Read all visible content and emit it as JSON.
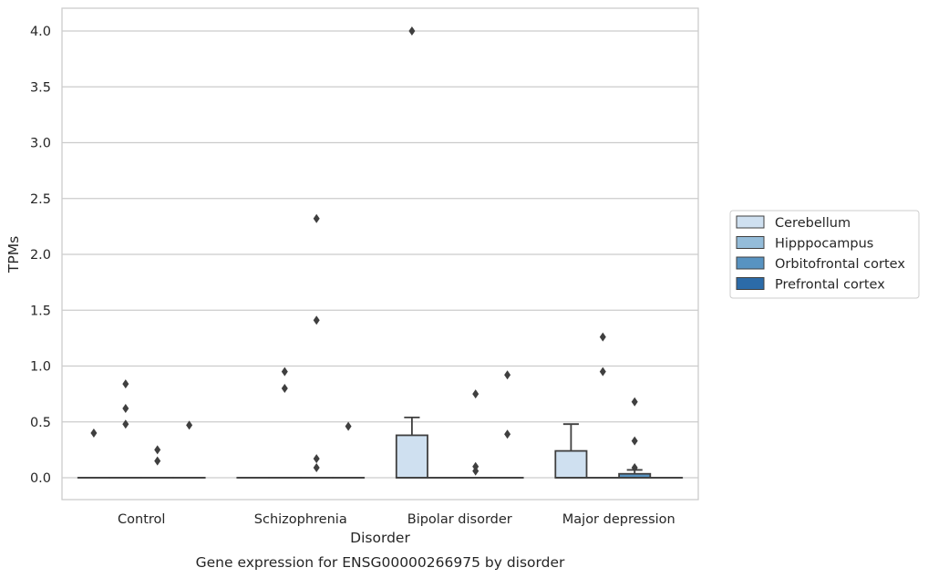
{
  "chart_data": {
    "type": "box",
    "title": "",
    "caption": "Gene expression for ENSG00000266975 by disorder",
    "xlabel": "Disorder",
    "ylabel": "TPMs",
    "ylim": [
      -0.2,
      4.2
    ],
    "yticks": [
      0.0,
      0.5,
      1.0,
      1.5,
      2.0,
      2.5,
      3.0,
      3.5,
      4.0
    ],
    "ytick_labels": [
      "0.0",
      "0.5",
      "1.0",
      "1.5",
      "2.0",
      "2.5",
      "3.0",
      "3.5",
      "4.0"
    ],
    "grid": "horizontal",
    "legend_position": "right",
    "categories": [
      "Control",
      "Schizophrenia",
      "Bipolar disorder",
      "Major depression"
    ],
    "series": [
      {
        "name": "Cerebellum",
        "color": "#cfe0f0",
        "boxes": [
          {
            "q1": 0,
            "median": 0,
            "q3": 0,
            "whisker_low": 0,
            "whisker_high": 0,
            "outliers": [
              0.4
            ]
          },
          {
            "q1": 0,
            "median": 0,
            "q3": 0,
            "whisker_low": 0,
            "whisker_high": 0,
            "outliers": []
          },
          {
            "q1": 0,
            "median": 0,
            "q3": 0.38,
            "whisker_low": 0,
            "whisker_high": 0.54,
            "outliers": [
              4.0
            ]
          },
          {
            "q1": 0,
            "median": 0,
            "q3": 0.24,
            "whisker_low": 0,
            "whisker_high": 0.48,
            "outliers": []
          }
        ]
      },
      {
        "name": "Hipppocampus",
        "color": "#94bcd9",
        "boxes": [
          {
            "q1": 0,
            "median": 0,
            "q3": 0,
            "whisker_low": 0,
            "whisker_high": 0,
            "outliers": [
              0.84,
              0.62,
              0.48
            ]
          },
          {
            "q1": 0,
            "median": 0,
            "q3": 0,
            "whisker_low": 0,
            "whisker_high": 0,
            "outliers": [
              0.95,
              0.8
            ]
          },
          {
            "q1": 0,
            "median": 0,
            "q3": 0,
            "whisker_low": 0,
            "whisker_high": 0,
            "outliers": []
          },
          {
            "q1": 0,
            "median": 0,
            "q3": 0,
            "whisker_low": 0,
            "whisker_high": 0,
            "outliers": [
              1.26,
              0.95
            ]
          }
        ]
      },
      {
        "name": "Orbitofrontal cortex",
        "color": "#5893c1",
        "boxes": [
          {
            "q1": 0,
            "median": 0,
            "q3": 0,
            "whisker_low": 0,
            "whisker_high": 0,
            "outliers": [
              0.25,
              0.15
            ]
          },
          {
            "q1": 0,
            "median": 0,
            "q3": 0,
            "whisker_low": 0,
            "whisker_high": 0,
            "outliers": [
              2.32,
              1.41,
              0.17,
              0.09
            ]
          },
          {
            "q1": 0,
            "median": 0,
            "q3": 0,
            "whisker_low": 0,
            "whisker_high": 0,
            "outliers": [
              0.75,
              0.1,
              0.06
            ]
          },
          {
            "q1": 0,
            "median": 0,
            "q3": 0.035,
            "whisker_low": 0,
            "whisker_high": 0.07,
            "outliers": [
              0.68,
              0.33,
              0.09
            ]
          }
        ]
      },
      {
        "name": "Prefrontal cortex",
        "color": "#2c6ba8",
        "boxes": [
          {
            "q1": 0,
            "median": 0,
            "q3": 0,
            "whisker_low": 0,
            "whisker_high": 0,
            "outliers": [
              0.47
            ]
          },
          {
            "q1": 0,
            "median": 0,
            "q3": 0,
            "whisker_low": 0,
            "whisker_high": 0,
            "outliers": [
              0.46
            ]
          },
          {
            "q1": 0,
            "median": 0,
            "q3": 0,
            "whisker_low": 0,
            "whisker_high": 0,
            "outliers": [
              0.92,
              0.39
            ]
          },
          {
            "q1": 0,
            "median": 0,
            "q3": 0,
            "whisker_low": 0,
            "whisker_high": 0,
            "outliers": []
          }
        ]
      }
    ]
  }
}
